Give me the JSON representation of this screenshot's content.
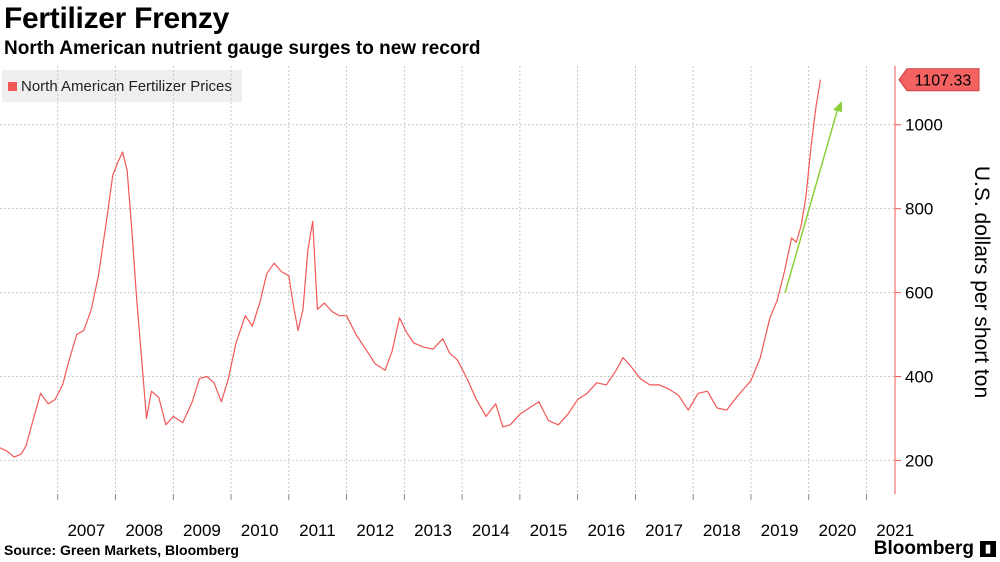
{
  "header": {
    "title": "Fertilizer Frenzy",
    "subtitle": "North American nutrient gauge surges to new record"
  },
  "footer": {
    "source": "Source: Green Markets, Bloomberg",
    "brand": "Bloomberg"
  },
  "colors": {
    "series": "#f25757",
    "badge": "#f56262",
    "arrow": "#8ccf3a",
    "grid": "#c8c8c8",
    "tick": "#888888"
  },
  "chart_data": {
    "type": "line",
    "title": "Fertilizer Frenzy",
    "subtitle": "North American nutrient gauge surges to new record",
    "xlabel": "",
    "ylabel": "U.S. dollars per short ton",
    "legend": "top-left",
    "grid": true,
    "xlim": [
      "2006-01-01",
      "2021-06-30"
    ],
    "ylim": [
      120,
      1140
    ],
    "x_ticks": [
      "2007",
      "2008",
      "2009",
      "2010",
      "2011",
      "2012",
      "2013",
      "2014",
      "2015",
      "2016",
      "2017",
      "2018",
      "2019",
      "2020",
      "2021"
    ],
    "y_ticks": [
      200,
      400,
      600,
      800,
      1000
    ],
    "series": [
      {
        "name": "North American Fertilizer Prices",
        "last_value_label": "1107.33",
        "points": [
          [
            "2006-01-01",
            230
          ],
          [
            "2006-02-15",
            222
          ],
          [
            "2006-04-01",
            208
          ],
          [
            "2006-05-15",
            215
          ],
          [
            "2006-06-15",
            235
          ],
          [
            "2006-08-01",
            300
          ],
          [
            "2006-09-15",
            360
          ],
          [
            "2006-11-01",
            335
          ],
          [
            "2006-12-15",
            345
          ],
          [
            "2007-02-01",
            380
          ],
          [
            "2007-03-15",
            440
          ],
          [
            "2007-05-01",
            500
          ],
          [
            "2007-06-15",
            510
          ],
          [
            "2007-08-01",
            560
          ],
          [
            "2007-09-15",
            640
          ],
          [
            "2007-11-01",
            760
          ],
          [
            "2007-12-15",
            880
          ],
          [
            "2008-01-15",
            910
          ],
          [
            "2008-02-15",
            935
          ],
          [
            "2008-03-15",
            890
          ],
          [
            "2008-04-15",
            740
          ],
          [
            "2008-05-15",
            580
          ],
          [
            "2008-06-15",
            440
          ],
          [
            "2008-07-15",
            300
          ],
          [
            "2008-08-15",
            365
          ],
          [
            "2008-10-01",
            350
          ],
          [
            "2008-11-15",
            285
          ],
          [
            "2009-01-01",
            305
          ],
          [
            "2009-03-01",
            290
          ],
          [
            "2009-05-01",
            340
          ],
          [
            "2009-06-15",
            395
          ],
          [
            "2009-08-01",
            400
          ],
          [
            "2009-09-15",
            385
          ],
          [
            "2009-11-01",
            340
          ],
          [
            "2009-12-15",
            395
          ],
          [
            "2010-02-01",
            480
          ],
          [
            "2010-04-01",
            545
          ],
          [
            "2010-05-15",
            520
          ],
          [
            "2010-07-01",
            575
          ],
          [
            "2010-08-15",
            645
          ],
          [
            "2010-10-01",
            670
          ],
          [
            "2010-11-15",
            650
          ],
          [
            "2011-01-01",
            640
          ],
          [
            "2011-02-01",
            565
          ],
          [
            "2011-03-01",
            510
          ],
          [
            "2011-04-01",
            560
          ],
          [
            "2011-05-01",
            700
          ],
          [
            "2011-06-01",
            770
          ],
          [
            "2011-07-01",
            560
          ],
          [
            "2011-08-15",
            575
          ],
          [
            "2011-10-01",
            555
          ],
          [
            "2011-11-15",
            545
          ],
          [
            "2012-01-01",
            545
          ],
          [
            "2012-03-01",
            500
          ],
          [
            "2012-05-01",
            465
          ],
          [
            "2012-07-01",
            430
          ],
          [
            "2012-09-01",
            415
          ],
          [
            "2012-10-15",
            460
          ],
          [
            "2012-12-01",
            540
          ],
          [
            "2013-01-15",
            505
          ],
          [
            "2013-03-01",
            480
          ],
          [
            "2013-05-01",
            470
          ],
          [
            "2013-07-01",
            465
          ],
          [
            "2013-09-01",
            490
          ],
          [
            "2013-10-15",
            455
          ],
          [
            "2013-12-01",
            440
          ],
          [
            "2014-02-01",
            395
          ],
          [
            "2014-04-01",
            345
          ],
          [
            "2014-06-01",
            305
          ],
          [
            "2014-08-01",
            335
          ],
          [
            "2014-09-15",
            280
          ],
          [
            "2014-11-01",
            285
          ],
          [
            "2015-01-01",
            310
          ],
          [
            "2015-03-01",
            325
          ],
          [
            "2015-05-01",
            340
          ],
          [
            "2015-07-01",
            295
          ],
          [
            "2015-09-01",
            285
          ],
          [
            "2015-11-01",
            310
          ],
          [
            "2016-01-01",
            345
          ],
          [
            "2016-03-01",
            360
          ],
          [
            "2016-05-01",
            385
          ],
          [
            "2016-07-01",
            380
          ],
          [
            "2016-09-01",
            415
          ],
          [
            "2016-10-15",
            445
          ],
          [
            "2016-12-01",
            425
          ],
          [
            "2017-02-01",
            395
          ],
          [
            "2017-04-01",
            380
          ],
          [
            "2017-06-01",
            380
          ],
          [
            "2017-08-01",
            370
          ],
          [
            "2017-10-01",
            355
          ],
          [
            "2017-12-01",
            320
          ],
          [
            "2018-02-01",
            360
          ],
          [
            "2018-04-01",
            365
          ],
          [
            "2018-06-01",
            325
          ],
          [
            "2018-08-01",
            320
          ],
          [
            "2018-10-01",
            350
          ],
          [
            "2018-11-15",
            370
          ],
          [
            "2019-01-01",
            390
          ],
          [
            "2019-03-01",
            445
          ],
          [
            "2019-05-01",
            540
          ],
          [
            "2019-06-15",
            580
          ],
          [
            "2019-08-01",
            650
          ],
          [
            "2019-09-15",
            730
          ],
          [
            "2019-10-15",
            720
          ],
          [
            "2019-11-15",
            760
          ],
          [
            "2019-12-15",
            830
          ],
          [
            "2020-01-15",
            945
          ],
          [
            "2020-02-15",
            1040
          ],
          [
            "2020-03-15",
            1107.33
          ]
        ]
      }
    ]
  }
}
